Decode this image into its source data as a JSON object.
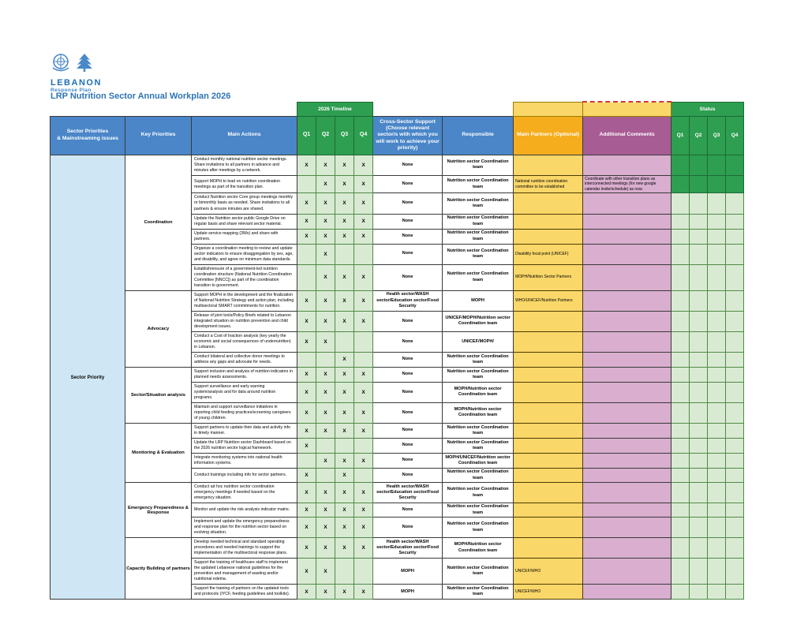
{
  "page": {
    "title": "LRP Nutrition Sector Annual Workplan 2026"
  },
  "logo": {
    "line1": "LEBANON",
    "line2": "Response Plan"
  },
  "colors": {
    "header_blue": "#4a86c8",
    "timeline_green": "#2e9e50",
    "light_green": "#d9ead3",
    "partners_orange": "#f5ad1d",
    "partners_light": "#fad769",
    "comments_purple": "#a85c94",
    "comments_light": "#d9aecf",
    "sector_priority_blue": "#cfe7f5",
    "title_blue": "#2e74b5"
  },
  "table": {
    "band": {
      "timeline": "2026 Timeline",
      "status": "Status"
    },
    "headers": {
      "sector_priorities": "Sector Priorities\n& Mainstreaming issues",
      "key_priorities": "Key Priorities",
      "main_actions": "Main Actions",
      "quarters": [
        "Q1",
        "Q2",
        "Q3",
        "Q4"
      ],
      "cross_sector": "Cross-Sector Support (Choose relevant sector/s with which you will work to achieve your priority)",
      "responsible": "Responsible",
      "main_partners": "Main Partners (Optional)",
      "comments": "Additional Comments",
      "status_quarters": [
        "Q1",
        "Q2",
        "Q3",
        "Q4"
      ]
    },
    "sector_priority_label": "Sector Priority",
    "sections": [
      {
        "label": "Coordination",
        "count": 7
      },
      {
        "label": "Advocacy",
        "count": 4
      },
      {
        "label": "Sector/Situation analysis",
        "count": 3
      },
      {
        "label": "Monitoring & Evaluation",
        "count": 4
      },
      {
        "label": "Emergency Preparedness & Response",
        "count": 3
      },
      {
        "label": "Capacity Building of partners",
        "count": 3
      }
    ],
    "rows": [
      {
        "action": "Conduct monthly national nutrition sector meetings. Share invitations to all partners in advance and minutes after meetings by a network.",
        "q": [
          "X",
          "X",
          "X",
          "X"
        ],
        "cross": "None",
        "responsible": "Nutrition sector Coordination team",
        "partners": "",
        "comments": "",
        "status_filled": true
      },
      {
        "action": "Support MOPH to lead on nutrition coordination meetings as part of the transition plan.",
        "q": [
          "",
          "X",
          "X",
          "X"
        ],
        "cross": "None",
        "responsible": "Nutrition sector Coordination team",
        "partners": "National nutrition coordination committee to be established",
        "comments": "Coordinate with other transition plans as interconnected meetings (for new google calendar invite/schedule) as now.",
        "status_filled": true
      },
      {
        "action": "Conduct Nutrition sector Core group meetings monthly or bimonthly basis as needed. Share invitations to all partners & ensure minutes are shared.",
        "q": [
          "X",
          "X",
          "X",
          "X"
        ],
        "cross": "None",
        "responsible": "Nutrition sector Coordination team",
        "partners": "",
        "comments": "",
        "status_filled": false
      },
      {
        "action": "Update the Nutrition sector public Google Drive on regular basis and share relevant sector material.",
        "q": [
          "X",
          "X",
          "X",
          "X"
        ],
        "cross": "None",
        "responsible": "Nutrition sector Coordination team",
        "partners": "",
        "comments": "",
        "status_filled": false
      },
      {
        "action": "Update service mapping (3Ws) and share with partners.",
        "q": [
          "X",
          "X",
          "X",
          "X"
        ],
        "cross": "None",
        "responsible": "Nutrition sector Coordination team",
        "partners": "",
        "comments": "",
        "status_filled": false
      },
      {
        "action": "Organize a coordination meeting to review and update sector indicators to ensure disaggregation by sex, age, and disability, and agree on minimum data standards.",
        "q": [
          "",
          "X",
          "",
          ""
        ],
        "cross": "None",
        "responsible": "Nutrition sector Coordination team",
        "partners": "Disability focal point (UNICEF)",
        "comments": "",
        "status_filled": false
      },
      {
        "action": "Establish/ensure of a government-led nutrition coordination structure (National Nutrition Coordination Committee [NNCC]) as part of the coordination transition to government.",
        "q": [
          "",
          "X",
          "X",
          "X"
        ],
        "cross": "None",
        "responsible": "Nutrition sector Coordination team",
        "partners": "MOPH/Nutrition Sector Partners",
        "comments": "",
        "status_filled": false
      },
      {
        "action": "Support MOPH in the development and the finalization of National Nutrition Strategy and action plan, including multisectoral SMART commitments for nutrition.",
        "q": [
          "X",
          "X",
          "X",
          "X"
        ],
        "cross": "Health sector/WASH sector/Education sector/Food Security",
        "responsible": "MOPH",
        "partners": "WHO/UNICEF/Nutrition Partners",
        "comments": "",
        "status_filled": false
      },
      {
        "action": "Release of joint tools/Policy Briefs related to Lebanon integrated situation on nutrition prevention and child development issues.",
        "q": [
          "X",
          "X",
          "X",
          "X"
        ],
        "cross": "None",
        "responsible": "UNICEF/MOPH/Nutrition sector Coordination team",
        "partners": "",
        "comments": "",
        "status_filled": false
      },
      {
        "action": "Conduct a Cost of Inaction analysis (key yearly the economic and social consequences of undernutrition) in Lebanon.",
        "q": [
          "X",
          "X",
          "",
          ""
        ],
        "cross": "None",
        "responsible": "UNICEF/MOPH/",
        "partners": "",
        "comments": "",
        "status_filled": false
      },
      {
        "action": "Conduct bilateral and collective donor meetings to address any gaps and advocate for needs.",
        "q": [
          "",
          "",
          "X",
          ""
        ],
        "cross": "None",
        "responsible": "Nutrition sector Coordination team",
        "partners": "",
        "comments": "",
        "status_filled": false
      },
      {
        "action": "Support inclusion and analysis of nutrition indicators in planned needs assessments.",
        "q": [
          "X",
          "X",
          "X",
          "X"
        ],
        "cross": "None",
        "responsible": "Nutrition sector Coordination team",
        "partners": "",
        "comments": "",
        "status_filled": false
      },
      {
        "action": "Support surveillance and early warning system/analysis and for data around nutrition programs.",
        "q": [
          "X",
          "X",
          "X",
          "X"
        ],
        "cross": "None",
        "responsible": "MOPH/Nutrition sector Coordination team",
        "partners": "",
        "comments": "",
        "status_filled": false
      },
      {
        "action": "Maintain and support surveillance initiatives in reporting child feeding practices/screening caregivers of young children.",
        "q": [
          "X",
          "X",
          "X",
          "X"
        ],
        "cross": "None",
        "responsible": "MOPH/Nutrition sector Coordination team",
        "partners": "",
        "comments": "",
        "status_filled": false
      },
      {
        "action": "Support partners to update their data and activity info in timely manner.",
        "q": [
          "X",
          "X",
          "X",
          "X"
        ],
        "cross": "None",
        "responsible": "Nutrition sector Coordination team",
        "partners": "",
        "comments": "",
        "status_filled": false
      },
      {
        "action": "Update the LRP Nutrition sector Dashboard based on the 2026 nutrition sector logical framework.",
        "q": [
          "X",
          "",
          "",
          ""
        ],
        "cross": "None",
        "responsible": "Nutrition sector Coordination team",
        "partners": "",
        "comments": "",
        "status_filled": false
      },
      {
        "action": "Integrate monitoring systems into national health information systems.",
        "q": [
          "",
          "X",
          "X",
          "X"
        ],
        "cross": "None",
        "responsible": "MOPH/UNICEF/Nutrition sector Coordination team",
        "partners": "",
        "comments": "",
        "status_filled": false
      },
      {
        "action": "Conduct trainings including info for sector partners.",
        "q": [
          "X",
          "",
          "X",
          ""
        ],
        "cross": "None",
        "responsible": "Nutrition sector Coordination team",
        "partners": "",
        "comments": "",
        "status_filled": false
      },
      {
        "action": "Conduct ad hoc nutrition sector coordination emergency meetings if needed based on the emergency situation.",
        "q": [
          "X",
          "X",
          "X",
          "X"
        ],
        "cross": "Health sector/WASH sector/Education sector/Food Security",
        "responsible": "Nutrition sector Coordination team",
        "partners": "",
        "comments": "",
        "status_filled": false
      },
      {
        "action": "Monitor and update the risk analysis indicator matrix.",
        "q": [
          "X",
          "X",
          "X",
          "X"
        ],
        "cross": "None",
        "responsible": "Nutrition sector Coordination team",
        "partners": "",
        "comments": "",
        "status_filled": false
      },
      {
        "action": "Implement and update the emergency preparedness and response plan for the nutrition sector based on evolving situation.",
        "q": [
          "X",
          "X",
          "X",
          "X"
        ],
        "cross": "None",
        "responsible": "Nutrition sector Coordination team",
        "partners": "",
        "comments": "",
        "status_filled": false
      },
      {
        "action": "Develop needed technical and standard operating procedures and needed trainings to support the implementation of the multisectoral response plans.",
        "q": [
          "X",
          "X",
          "X",
          "X"
        ],
        "cross": "Health sector/WASH sector/Education sector/Food Security",
        "responsible": "MOPH/Nutrition sector Coordination team",
        "partners": "",
        "comments": "",
        "status_filled": false
      },
      {
        "action": "Support the training of healthcare staff to implement the updated Lebanese national guidelines for the prevention and management of wasting and/or nutritional edema.",
        "q": [
          "X",
          "X",
          "",
          ""
        ],
        "cross": "MOPH",
        "responsible": "Nutrition sector Coordination team",
        "partners": "UNICEF/WHO",
        "comments": "",
        "status_filled": false
      },
      {
        "action": "Support the training of partners on the updated tools and protocols (IYCF, feeding guidelines and toolkits).",
        "q": [
          "X",
          "X",
          "X",
          "X"
        ],
        "cross": "MOPH",
        "responsible": "Nutrition sector Coordination team",
        "partners": "UNICEF/WHO",
        "comments": "",
        "status_filled": false
      }
    ]
  }
}
